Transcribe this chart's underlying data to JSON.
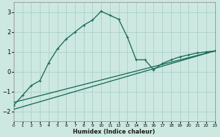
{
  "xlabel": "Humidex (Indice chaleur)",
  "bg_color": "#cce8e0",
  "grid_color": "#aacfc8",
  "line_color": "#1a6b5a",
  "xlim": [
    0,
    23
  ],
  "ylim": [
    -2.5,
    3.5
  ],
  "yticks": [
    -2,
    -1,
    0,
    1,
    2,
    3
  ],
  "xticks": [
    0,
    1,
    2,
    3,
    4,
    5,
    6,
    7,
    8,
    9,
    10,
    11,
    12,
    13,
    14,
    15,
    16,
    17,
    18,
    19,
    20,
    21,
    22,
    23
  ],
  "curve_x": [
    0,
    1,
    2,
    3,
    4,
    5,
    6,
    7,
    8,
    9,
    10,
    11,
    12,
    13,
    14,
    15,
    16,
    17,
    18,
    19,
    20,
    21,
    22,
    23
  ],
  "curve_y": [
    -1.7,
    -1.2,
    -0.7,
    -0.45,
    0.45,
    1.15,
    1.65,
    2.0,
    2.35,
    2.6,
    3.05,
    2.85,
    2.65,
    1.75,
    0.6,
    0.6,
    0.1,
    0.42,
    0.6,
    0.75,
    0.85,
    0.95,
    1.0,
    1.05
  ],
  "line1_x": [
    0,
    23
  ],
  "line1_y": [
    -1.9,
    1.05
  ],
  "line2_x": [
    0,
    23
  ],
  "line2_y": [
    -1.55,
    1.05
  ],
  "line_width": 1.0,
  "marker": "+"
}
